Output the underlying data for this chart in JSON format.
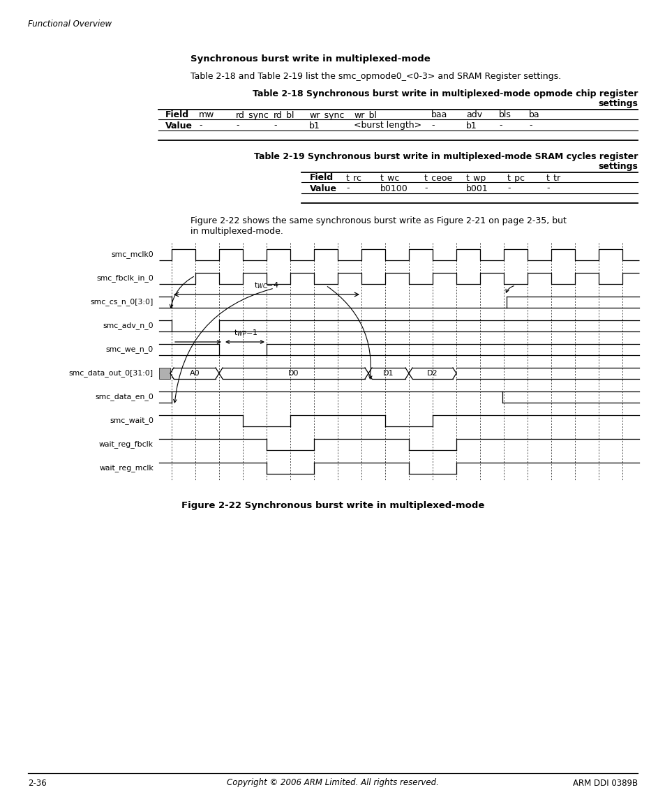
{
  "page_header": "Functional Overview",
  "section_title": "Synchronous burst write in multiplexed-mode",
  "intro_text": "Table 2-18 and Table 2-19 list the smc_opmode0_<0-3> and SRAM Register settings.",
  "table1_title_line1": "Table 2-18 Synchronous burst write in multiplexed-mode opmode chip register",
  "table1_title_line2": "settings",
  "table2_title_line1": "Table 2-19 Synchronous burst write in multiplexed-mode SRAM cycles register",
  "table2_title_line2": "settings",
  "figure_desc1": "Figure 2-22 shows the same synchronous burst write as Figure 2-21 on page 2-35, but",
  "figure_desc2": "in multiplexed-mode.",
  "figure_caption": "Figure 2-22 Synchronous burst write in multiplexed-mode",
  "footer_left": "2-36",
  "footer_center": "Copyright © 2006 ARM Limited. All rights reserved.",
  "footer_right": "ARM DDI 0389B",
  "signal_names": [
    "smc_mclk0",
    "smc_fbclk_in_0",
    "smc_cs_n_0[3:0]",
    "smc_adv_n_0",
    "smc_we_n_0",
    "smc_data_out_0[31:0]",
    "smc_data_en_0",
    "smc_wait_0",
    "wait_reg_fbclk",
    "wait_reg_mclk"
  ],
  "bg_color": "#ffffff"
}
